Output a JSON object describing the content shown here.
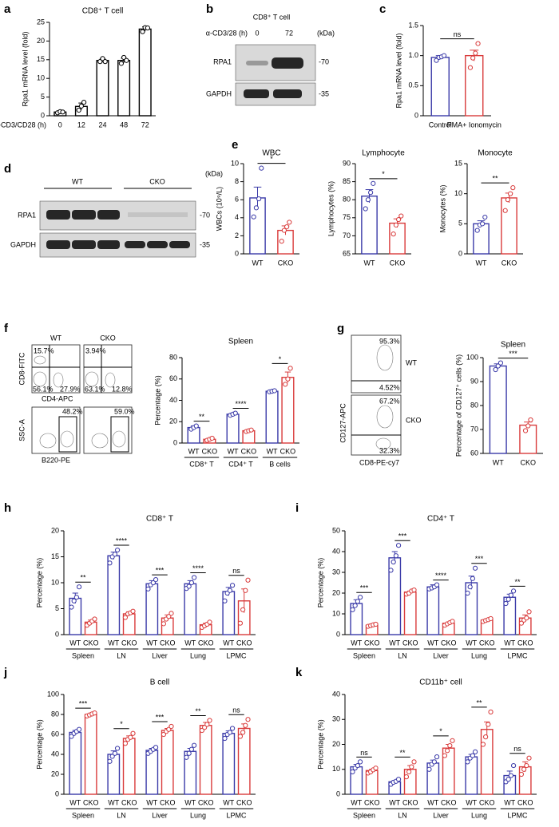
{
  "chart_data": [
    {
      "type": "bar",
      "panel": "a",
      "title": "CD8⁺ T cell",
      "ylabel": "Rpa1 mRNA level (fold)",
      "xlabel": "α-CD3/CD28 (h)",
      "categories": [
        "0",
        "12",
        "24",
        "48",
        "72"
      ],
      "values": [
        1,
        2.5,
        14.8,
        14.8,
        23.2
      ],
      "errors": [
        0.2,
        0.9,
        0.4,
        0.6,
        0.6
      ],
      "points": [
        [
          0.8,
          1.1,
          1.0
        ],
        [
          1.5,
          2.6,
          3.6
        ],
        [
          14.5,
          15.3,
          14.5
        ],
        [
          14,
          15.6,
          14.8
        ],
        [
          22.5,
          23.6,
          23.5
        ]
      ],
      "color": "#000000",
      "ylim": [
        0,
        25
      ],
      "yticks": [
        0,
        5,
        10,
        15,
        20,
        25
      ]
    },
    {
      "type": "bar",
      "panel": "c",
      "ylabel": "Rpa1 mRNA level (fold)",
      "categories": [
        "Control",
        "PMA+ Ionomycin"
      ],
      "values": [
        0.97,
        1.0
      ],
      "errors": [
        0.03,
        0.09
      ],
      "points": [
        [
          0.92,
          0.97,
          0.98,
          1.0
        ],
        [
          0.8,
          0.96,
          1.04,
          1.2
        ]
      ],
      "colors": [
        "#3a3aa8",
        "#d93b3b"
      ],
      "annotation": "ns",
      "ylim": [
        0,
        1.5
      ],
      "yticks": [
        0,
        0.5,
        {
          "value": 1,
          "label": "1.0"
        },
        1.5
      ]
    },
    {
      "type": "bar",
      "panel": "e",
      "title": "WBC",
      "ylabel": "WBCs (10⁹/L)",
      "categories": [
        "WT",
        "CKO"
      ],
      "values": [
        6.2,
        2.6
      ],
      "errors": [
        1.2,
        0.5
      ],
      "points": [
        [
          4.1,
          5.1,
          6.1,
          9.5
        ],
        [
          1.4,
          2.6,
          3.0,
          3.5
        ]
      ],
      "colors": [
        "#3a3aa8",
        "#d93b3b"
      ],
      "annotation": "*",
      "ylim": [
        0,
        10
      ],
      "yticks": [
        0,
        2,
        4,
        6,
        8,
        10
      ]
    },
    {
      "type": "bar",
      "title": "Lymphocyte",
      "ylabel": "Lymphocytes (%)",
      "categories": [
        "WT",
        "CKO"
      ],
      "values": [
        81,
        73.5
      ],
      "errors": [
        1.8,
        1.2
      ],
      "points": [
        [
          77.5,
          80,
          82,
          84.5
        ],
        [
          70.5,
          73,
          74.5,
          75.5
        ]
      ],
      "colors": [
        "#3a3aa8",
        "#d93b3b"
      ],
      "annotation": "*",
      "ylim": [
        65,
        90
      ],
      "yticks": [
        65,
        70,
        75,
        80,
        85,
        90
      ]
    },
    {
      "type": "bar",
      "title": "Monocyte",
      "ylabel": "Monocytes (%)",
      "categories": [
        "WT",
        "CKO"
      ],
      "values": [
        5,
        9.3
      ],
      "errors": [
        0.5,
        0.8
      ],
      "points": [
        [
          3.9,
          4.8,
          5.0,
          6.1
        ],
        [
          7.2,
          9.0,
          10.0,
          11.0
        ]
      ],
      "colors": [
        "#3a3aa8",
        "#d93b3b"
      ],
      "annotation": "**",
      "ylim": [
        0,
        15
      ],
      "yticks": [
        0,
        5,
        10,
        15
      ]
    },
    {
      "type": "bar",
      "title": "Spleen",
      "ylabel": "Percentage (%)",
      "categories": [
        "CD8⁺ T",
        "CD4⁺ T",
        "B cells"
      ],
      "series": [
        {
          "name": "WT",
          "color": "#3a3aa8",
          "values": [
            14.5,
            27,
            48.5
          ],
          "errors": [
            1.5,
            1,
            0.4
          ],
          "points": [
            [
              13,
              14.5,
              16
            ],
            [
              26,
              27,
              28
            ],
            [
              48,
              48.5,
              49
            ]
          ]
        },
        {
          "name": "CKO",
          "color": "#d93b3b",
          "values": [
            3.5,
            11.5,
            61.5
          ],
          "errors": [
            1,
            0.7,
            5
          ],
          "points": [
            [
              2.5,
              3.5,
              4.5
            ],
            [
              10.8,
              11.5,
              12.2
            ],
            [
              55,
              60,
              70
            ]
          ]
        }
      ],
      "annotations": [
        "**",
        "****",
        "*"
      ],
      "ylim": [
        0,
        80
      ],
      "yticks": [
        0,
        20,
        40,
        60,
        80
      ]
    },
    {
      "type": "bar",
      "title": "Spleen",
      "ylabel": "Percentage of CD127⁺ cells (%)",
      "categories": [
        "WT",
        "CKO"
      ],
      "values": [
        96.5,
        71.8
      ],
      "errors": [
        0.9,
        1.3
      ],
      "points": [
        [
          95,
          96.5,
          97.8
        ],
        [
          69.5,
          71.5,
          74
        ]
      ],
      "colors": [
        "#3a3aa8",
        "#d93b3b"
      ],
      "annotation": "***",
      "ylim": [
        60,
        100
      ],
      "yticks": [
        60,
        70,
        80,
        90,
        100
      ]
    },
    {
      "type": "bar",
      "panel": "h",
      "title": "CD8⁺ T",
      "ylabel": "Percentage (%)",
      "categories": [
        "Spleen",
        "LN",
        "Liver",
        "Lung",
        "LPMC"
      ],
      "series": [
        {
          "name": "WT",
          "color": "#3a3aa8",
          "values": [
            7,
            15.2,
            9.8,
            9.8,
            8.3
          ],
          "errors": [
            1,
            0.7,
            0.6,
            0.6,
            0.8
          ],
          "points": [
            [
              5.3,
              6.5,
              7.2,
              9.2
            ],
            [
              13.8,
              15,
              15.5,
              16.3
            ],
            [
              8.8,
              9.6,
              10,
              10.6
            ],
            [
              8.9,
              9.3,
              10,
              11
            ],
            [
              6.5,
              8,
              8.5,
              9.5
            ]
          ]
        },
        {
          "name": "CKO",
          "color": "#d93b3b",
          "values": [
            2.4,
            4,
            3.2,
            1.9,
            6.5
          ],
          "errors": [
            0.4,
            0.4,
            0.6,
            0.3,
            2.3
          ],
          "points": [
            [
              1.8,
              2.2,
              2.6,
              3
            ],
            [
              3.3,
              4,
              4.2,
              4.5
            ],
            [
              2.1,
              3,
              3.5,
              4.1
            ],
            [
              1.4,
              1.7,
              2,
              2.4
            ],
            [
              2.2,
              4.8,
              8.5,
              10.5
            ]
          ]
        }
      ],
      "annotations": [
        "**",
        "****",
        "***",
        "****",
        "ns"
      ],
      "ylim": [
        0,
        20
      ],
      "yticks": [
        0,
        5,
        10,
        15,
        20
      ]
    },
    {
      "type": "bar",
      "panel": "i",
      "title": "CD4⁺ T",
      "ylabel": "Percentage (%)",
      "categories": [
        "Spleen",
        "LN",
        "Liver",
        "Lung",
        "LPMC"
      ],
      "series": [
        {
          "name": "WT",
          "color": "#3a3aa8",
          "values": [
            15,
            37,
            23,
            25,
            18
          ],
          "errors": [
            1.8,
            3,
            1,
            3.2,
            1.5
          ],
          "points": [
            [
              12,
              14,
              16,
              18
            ],
            [
              31,
              35,
              38,
              43
            ],
            [
              22,
              22.5,
              23,
              24
            ],
            [
              20,
              23,
              27,
              32
            ],
            [
              15,
              17,
              19,
              21
            ]
          ]
        },
        {
          "name": "CKO",
          "color": "#d93b3b",
          "values": [
            4.5,
            20.5,
            5.5,
            7,
            8
          ],
          "errors": [
            0.3,
            0.5,
            0.5,
            0.4,
            1.5
          ],
          "points": [
            [
              4,
              4.3,
              4.7,
              5
            ],
            [
              19.5,
              20,
              21,
              21.5
            ],
            [
              4.5,
              5.2,
              5.8,
              6.4
            ],
            [
              6.3,
              6.8,
              7.2,
              7.7
            ],
            [
              5.5,
              7,
              8,
              11
            ]
          ]
        }
      ],
      "annotations": [
        "***",
        "***",
        "****",
        "***",
        "**"
      ],
      "ylim": [
        0,
        50
      ],
      "yticks": [
        0,
        10,
        20,
        30,
        40,
        50
      ]
    },
    {
      "type": "bar",
      "panel": "j",
      "title": "B cell",
      "ylabel": "Percentage (%)",
      "categories": [
        "Spleen",
        "LN",
        "Liver",
        "Lung",
        "LPMC"
      ],
      "series": [
        {
          "name": "WT",
          "color": "#3a3aa8",
          "values": [
            62,
            40,
            44,
            43,
            61
          ],
          "errors": [
            2,
            3.5,
            2,
            3,
            2.5
          ],
          "points": [
            [
              58,
              61,
              63,
              65
            ],
            [
              33,
              38,
              41,
              46
            ],
            [
              41,
              43,
              45,
              47
            ],
            [
              37,
              41,
              45,
              49
            ],
            [
              56,
              60,
              62,
              66
            ]
          ]
        },
        {
          "name": "CKO",
          "color": "#d93b3b",
          "values": [
            80,
            56,
            64,
            69,
            66
          ],
          "errors": [
            0.8,
            2.5,
            2,
            3,
            4.5
          ],
          "points": [
            [
              78.5,
              79.5,
              80.5,
              81.5
            ],
            [
              51,
              55,
              57,
              61
            ],
            [
              60,
              63,
              65,
              68
            ],
            [
              64,
              67,
              70,
              74
            ],
            [
              58,
              62,
              69,
              75
            ]
          ]
        }
      ],
      "annotations": [
        "***",
        "*",
        "***",
        "**",
        "ns"
      ],
      "ylim": [
        0,
        100
      ],
      "yticks": [
        0,
        20,
        40,
        60,
        80,
        100
      ]
    },
    {
      "type": "bar",
      "panel": "k",
      "title": "CD11b⁺ cell",
      "ylabel": "Percentage (%)",
      "categories": [
        "Spleen",
        "LN",
        "Liver",
        "Lung",
        "LPMC"
      ],
      "series": [
        {
          "name": "WT",
          "color": "#3a3aa8",
          "values": [
            11,
            5,
            12.5,
            15,
            7.5
          ],
          "errors": [
            1,
            0.5,
            1.2,
            1,
            1.8
          ],
          "points": [
            [
              9,
              10.5,
              11.5,
              13
            ],
            [
              4,
              4.8,
              5.2,
              6
            ],
            [
              10,
              12,
              13,
              15
            ],
            [
              13,
              14.5,
              15.5,
              17
            ],
            [
              5,
              6,
              7.5,
              11.5
            ]
          ]
        },
        {
          "name": "CKO",
          "color": "#d93b3b",
          "values": [
            9.5,
            10,
            18.5,
            26,
            11
          ],
          "errors": [
            0.5,
            1.5,
            1.5,
            3,
            2
          ],
          "points": [
            [
              8.5,
              9,
              9.8,
              10.5
            ],
            [
              7,
              9,
              11,
              13
            ],
            [
              15.5,
              17.5,
              19.5,
              21.5
            ],
            [
              20,
              23,
              28,
              33
            ],
            [
              8,
              10,
              11.5,
              14.5
            ]
          ]
        }
      ],
      "annotations": [
        "ns",
        "**",
        "*",
        "**",
        "ns"
      ],
      "ylim": [
        0,
        40
      ],
      "yticks": [
        0,
        10,
        20,
        30,
        40
      ]
    }
  ],
  "blots": [
    {
      "panel": "b",
      "title": "CD8⁺ T cell",
      "treatment": "α-CD3/28 (h)",
      "lanes": [
        "0",
        "72"
      ],
      "unit": "(kDa)",
      "proteins": [
        "RPA1",
        "GAPDH"
      ],
      "markers": [
        "-70",
        "-35"
      ]
    },
    {
      "panel": "d",
      "groups": [
        "WT",
        "CKO"
      ],
      "unit": "(kDa)",
      "proteins": [
        "RPA1",
        "GAPDH"
      ],
      "markers": [
        "-70",
        "-35"
      ]
    }
  ],
  "flow": [
    {
      "panel": "f",
      "samples": [
        "WT",
        "CKO"
      ],
      "top_axes": [
        "CD8-FITC",
        "CD4-APC"
      ],
      "top_gates": [
        [
          "15.7%",
          "56.1%",
          "27.9%"
        ],
        [
          "3.94%",
          "63.1%",
          "12.8%"
        ]
      ],
      "bottom_axes": [
        "SSC-A",
        "B220-PE"
      ],
      "bottom_gates": [
        "48.2%",
        "59.0%"
      ]
    },
    {
      "panel": "g",
      "samples": [
        "WT",
        "CKO"
      ],
      "axes": [
        "CD127-APC",
        "CD8-PE-cy7"
      ],
      "gates": [
        [
          "95.3%",
          "4.52%"
        ],
        [
          "67.2%",
          "32.3%"
        ]
      ]
    }
  ]
}
